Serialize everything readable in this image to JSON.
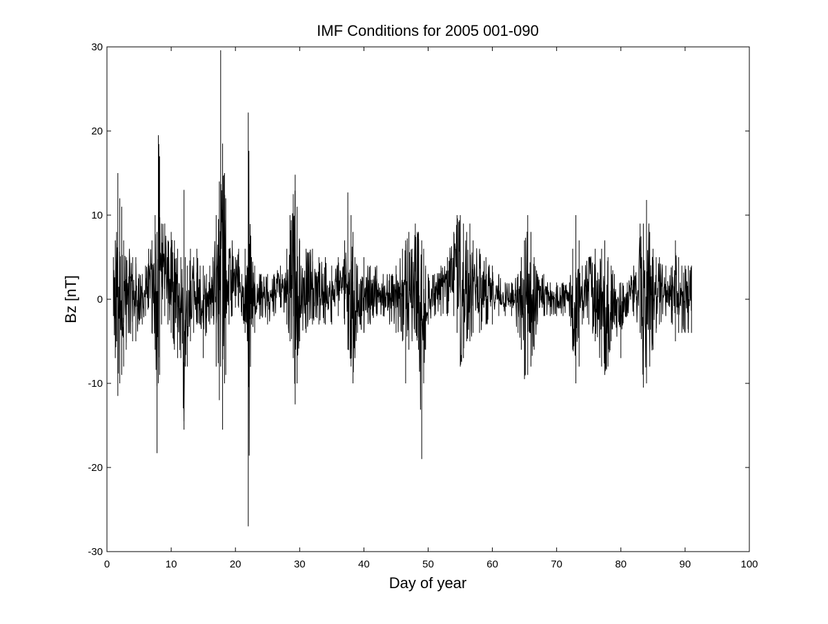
{
  "chart_data": {
    "type": "line",
    "title": "IMF Conditions for 2005 001-090",
    "xlabel": "Day of year",
    "ylabel": "Bz [nT]",
    "xlim": [
      0,
      100
    ],
    "ylim": [
      -30,
      30
    ],
    "xticks": [
      0,
      10,
      20,
      30,
      40,
      50,
      60,
      70,
      80,
      90,
      100
    ],
    "yticks": [
      -30,
      -20,
      -10,
      0,
      10,
      20,
      30
    ],
    "xtick_labels": [
      "0",
      "10",
      "20",
      "30",
      "40",
      "50",
      "60",
      "70",
      "80",
      "90",
      "100"
    ],
    "ytick_labels": [
      "-30",
      "-20",
      "-10",
      "0",
      "10",
      "20",
      "30"
    ],
    "grid": false,
    "line_color": "#000000",
    "series": [
      {
        "x": [
          1.0,
          1.3,
          1.5,
          1.7,
          2.0,
          2.3,
          2.6,
          3.0,
          3.5,
          4.0,
          4.5,
          5.0,
          5.5,
          6.0,
          6.5,
          7.0,
          7.5,
          7.8,
          8.0,
          8.2,
          8.5,
          9.0,
          9.5,
          10.0,
          10.5,
          11.0,
          11.5,
          12.0,
          12.2,
          12.5,
          13.0,
          13.5,
          14.0,
          14.5,
          15.0,
          15.5,
          16.0,
          16.5,
          17.0,
          17.5,
          17.7,
          18.0,
          18.3,
          18.5,
          19.0,
          19.5,
          20.0,
          20.5,
          21.0,
          21.5,
          21.8,
          22.0,
          22.5,
          23.0,
          24.0,
          25.0,
          26.0,
          27.0,
          28.0,
          28.5,
          29.0,
          29.3,
          29.6,
          30.0,
          31.0,
          32.0,
          33.0,
          34.0,
          35.0,
          36.0,
          37.0,
          37.5,
          38.0,
          38.3,
          38.6,
          39.0,
          40.0,
          41.0,
          42.0,
          43.0,
          44.0,
          45.0,
          46.0,
          46.5,
          47.0,
          47.5,
          48.0,
          48.5,
          49.0,
          49.3,
          49.6,
          50.0,
          51.0,
          52.0,
          53.0,
          54.0,
          54.5,
          55.0,
          55.5,
          56.0,
          56.5,
          57.0,
          58.0,
          59.0,
          60.0,
          61.0,
          62.0,
          63.0,
          64.0,
          64.5,
          65.0,
          65.5,
          66.0,
          66.5,
          67.0,
          68.0,
          69.0,
          70.0,
          71.0,
          72.0,
          72.5,
          73.0,
          73.5,
          74.0,
          75.0,
          76.0,
          77.0,
          77.5,
          78.0,
          78.5,
          79.0,
          80.0,
          81.0,
          82.0,
          83.0,
          83.5,
          84.0,
          84.5,
          85.0,
          85.5,
          86.0,
          87.0,
          88.0,
          88.5,
          89.0,
          89.5,
          90.0,
          90.5,
          91.0
        ],
        "min": [
          -2,
          -7,
          -5,
          -11.5,
          -10,
          -9,
          -8,
          -6,
          -4,
          -5,
          -5,
          -3,
          -3,
          -2,
          -1,
          -4,
          -6,
          -18.3,
          -10,
          -9,
          -3,
          -2,
          -3,
          -4,
          -6,
          -7,
          -7,
          -15.5,
          -8,
          -8,
          -5,
          -4,
          -3,
          -3,
          -7,
          -4,
          -3,
          -2,
          -8,
          -12,
          -8,
          -15.5,
          -10,
          -9,
          -3,
          -2,
          -1,
          -1,
          -2,
          -4,
          -3,
          -27,
          -3,
          -4,
          -2,
          -3,
          -2,
          -1,
          -3,
          -5,
          -7,
          -12.5,
          -10,
          -5,
          -4,
          -3,
          -3,
          -3,
          -3,
          -2,
          -3,
          -6,
          -8,
          -10,
          -7,
          -4,
          -4,
          -3,
          -2,
          -2,
          -3,
          -4,
          -5,
          -10,
          -6,
          -5,
          -4,
          -6,
          -19,
          -10,
          -6,
          -3,
          -2,
          -2,
          -2,
          -2,
          -4,
          -8,
          -7,
          -5,
          -5,
          -4,
          -4,
          -3,
          -3,
          -2,
          -2,
          -2,
          -4,
          -6,
          -9.5,
          -9,
          -8,
          -6,
          -3,
          -2,
          -2,
          -2,
          -2,
          -2,
          -6,
          -10,
          -8,
          -3,
          -3,
          -5,
          -8,
          -9,
          -8,
          -5,
          -3,
          -7,
          -2,
          -2,
          -4,
          -10.5,
          -10,
          -8,
          -6,
          -4,
          -3,
          -2,
          -3,
          -5,
          -4,
          -4,
          -4,
          -4,
          -4
        ],
        "max": [
          5,
          7,
          8,
          15,
          12,
          11,
          7,
          5,
          6,
          5,
          5,
          3,
          3,
          4,
          6,
          7,
          10,
          8,
          19.5,
          17,
          9,
          9,
          7,
          8,
          7,
          6,
          5,
          13,
          5,
          4,
          6,
          5,
          6,
          4,
          4,
          3,
          4,
          5,
          10,
          14,
          29.6,
          18.5,
          15,
          12,
          6,
          7,
          5,
          6,
          3,
          6,
          4,
          22.2,
          5,
          4,
          3,
          3,
          3,
          4,
          6,
          10,
          12.5,
          14.8,
          11,
          7,
          6,
          6,
          5,
          5,
          4,
          5,
          7,
          12.7,
          10,
          8,
          5,
          4,
          5,
          4,
          4,
          3,
          3,
          4,
          6,
          7,
          8,
          6,
          9,
          8,
          7,
          6,
          4,
          3,
          3,
          4,
          5,
          8,
          10,
          10,
          9,
          8,
          9,
          7,
          6,
          5,
          4,
          3,
          2,
          2,
          3,
          5,
          7,
          10,
          8,
          5,
          3,
          3,
          2,
          2,
          2,
          2,
          6,
          10,
          7,
          4,
          5,
          6,
          6,
          7,
          5,
          4,
          3,
          2,
          2,
          4,
          9,
          9,
          11.8,
          8,
          6,
          5,
          5,
          4,
          4,
          7,
          5,
          4,
          4,
          4,
          4
        ]
      }
    ]
  }
}
